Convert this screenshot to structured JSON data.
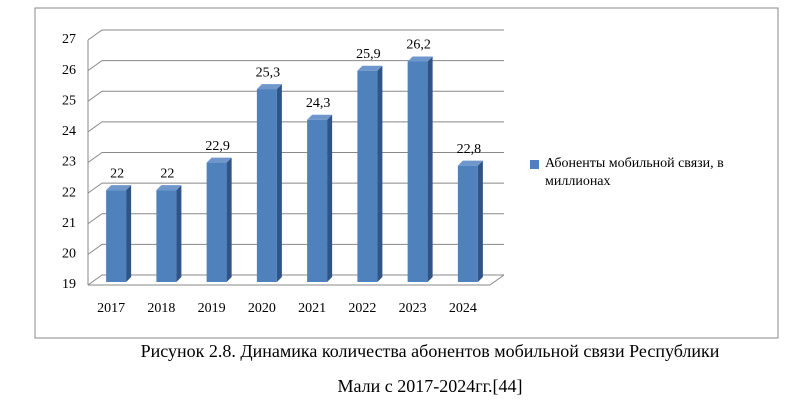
{
  "chart_data": {
    "type": "bar",
    "categories": [
      "2017",
      "2018",
      "2019",
      "2020",
      "2021",
      "2022",
      "2023",
      "2024"
    ],
    "series": [
      {
        "name": "Абоненты мобильной связи, в миллионах",
        "color": "#4f81bd",
        "values": [
          22,
          22,
          22.9,
          25.3,
          24.3,
          25.9,
          26.2,
          22.8
        ],
        "value_labels": [
          "22",
          "22",
          "22,9",
          "25,3",
          "24,3",
          "25,9",
          "26,2",
          "22,8"
        ]
      }
    ],
    "ylim": [
      19,
      27
    ],
    "yticks": [
      19,
      20,
      21,
      22,
      23,
      24,
      25,
      26,
      27
    ],
    "grid": true,
    "legend": "right"
  },
  "caption": [
    "Рисунок  2.8. Динамика количества абонентов мобильной связи Республики",
    "Мали с 2017-2024гг.[44]"
  ]
}
